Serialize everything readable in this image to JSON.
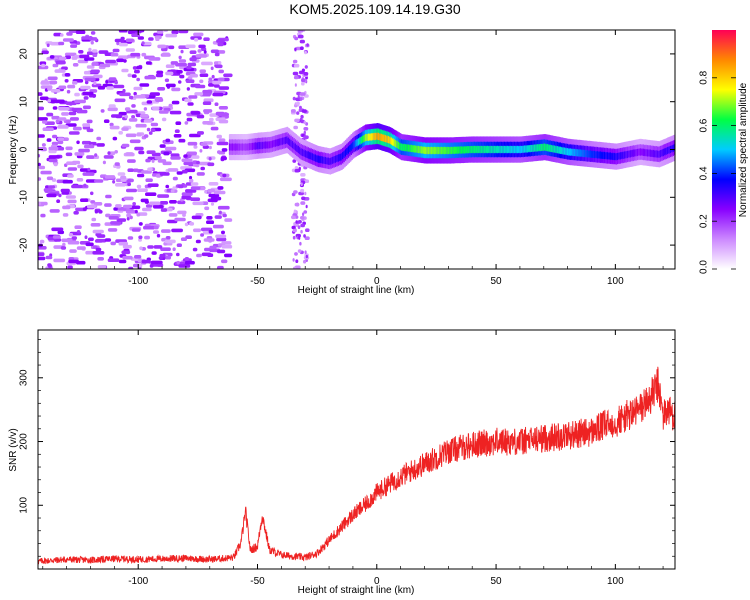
{
  "title": "KOM5.2025.109.14.19.G30",
  "chart_data": [
    {
      "type": "heatmap",
      "xlabel": "Height of straight line (km)",
      "ylabel": "Frequency (Hz)",
      "xlim": [
        -142,
        125
      ],
      "ylim": [
        -25,
        25
      ],
      "x_ticks": [
        -100,
        -50,
        0,
        50,
        100
      ],
      "x_tick_labels": [
        "-100",
        "-50",
        "0",
        "50",
        "100"
      ],
      "y_ticks": [
        -20,
        -10,
        0,
        10,
        20
      ],
      "y_tick_labels": [
        "-20",
        "-10",
        "0",
        "10",
        "20"
      ],
      "colorbar": {
        "label": "Normalized spectral amplitude",
        "range": [
          0,
          1
        ],
        "ticks": [
          0.0,
          0.2,
          0.4,
          0.6,
          0.8
        ],
        "tick_labels": [
          "0.0",
          "0.2",
          "0.4",
          "0.6",
          "0.8"
        ],
        "colors": [
          "#ffffff",
          "#cc88ff",
          "#8800ff",
          "#0000ff",
          "#00ccff",
          "#00ff44",
          "#ffff00",
          "#ff8800",
          "#ff0055"
        ]
      },
      "ridge": {
        "x": [
          -62,
          -55,
          -50,
          -45,
          -38,
          -32,
          -25,
          -20,
          -15,
          -10,
          -5,
          0,
          5,
          10,
          20,
          30,
          40,
          50,
          60,
          70,
          80,
          90,
          100,
          110,
          118,
          125
        ],
        "frequency": [
          0.5,
          0.5,
          0.8,
          1.0,
          2.0,
          -0.5,
          -2.0,
          -2.5,
          -1.5,
          1.0,
          2.5,
          2.8,
          2.0,
          0.5,
          -0.2,
          -0.2,
          0.0,
          0.0,
          0.0,
          0.5,
          -0.5,
          -1.0,
          -1.5,
          -0.5,
          -1.0,
          0.5
        ],
        "amplitude": [
          0.25,
          0.2,
          0.3,
          0.25,
          0.3,
          0.3,
          0.35,
          0.3,
          0.35,
          0.4,
          0.7,
          0.85,
          0.8,
          0.6,
          0.7,
          0.65,
          0.6,
          0.55,
          0.5,
          0.6,
          0.5,
          0.4,
          0.35,
          0.25,
          0.3,
          0.35
        ]
      }
    },
    {
      "type": "line",
      "xlabel": "Height of straight line (km)",
      "ylabel": "SNR (v/v)",
      "xlim": [
        -142,
        125
      ],
      "ylim": [
        0,
        375
      ],
      "x_ticks": [
        -100,
        -50,
        0,
        50,
        100
      ],
      "x_tick_labels": [
        "-100",
        "-50",
        "0",
        "50",
        "100"
      ],
      "y_ticks": [
        100,
        200,
        300
      ],
      "y_tick_labels": [
        "100",
        "200",
        "300"
      ],
      "line_color": "#ee2222",
      "series": [
        {
          "x": [
            -142,
            -130,
            -120,
            -110,
            -100,
            -90,
            -80,
            -70,
            -60,
            -57,
            -55,
            -53,
            -50,
            -48,
            -45,
            -40,
            -35,
            -30,
            -25,
            -20,
            -15,
            -10,
            -5,
            0,
            10,
            20,
            30,
            40,
            50,
            60,
            70,
            80,
            90,
            95,
            100,
            105,
            110,
            115,
            118,
            120,
            122,
            125
          ],
          "y": [
            12,
            15,
            14,
            16,
            15,
            16,
            17,
            15,
            18,
            40,
            90,
            30,
            35,
            85,
            30,
            22,
            20,
            18,
            25,
            45,
            65,
            85,
            100,
            120,
            145,
            165,
            185,
            195,
            200,
            200,
            205,
            210,
            215,
            225,
            230,
            240,
            250,
            270,
            290,
            240,
            250,
            240
          ]
        }
      ]
    }
  ]
}
